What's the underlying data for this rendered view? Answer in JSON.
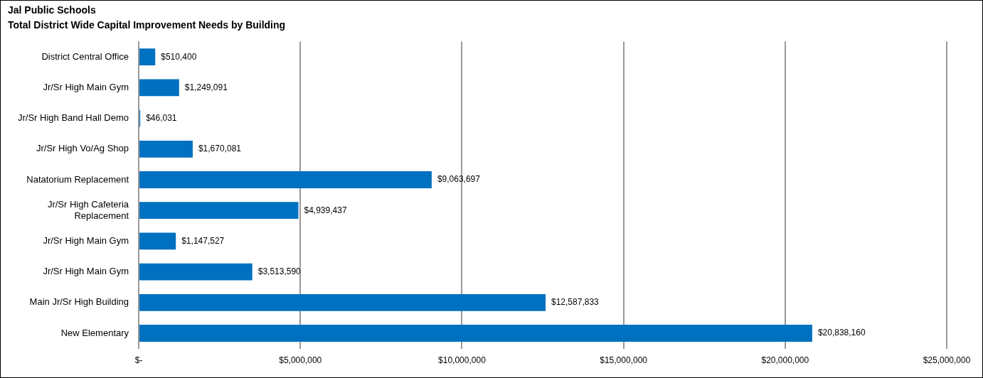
{
  "chart_data": {
    "type": "bar",
    "orientation": "horizontal",
    "title": "Jal Public Schools",
    "subtitle": "Total District Wide Capital Improvement Needs by Building",
    "categories": [
      "District Central Office",
      "Jr/Sr High Main Gym",
      "Jr/Sr High Band Hall Demo",
      "Jr/Sr High Vo/Ag Shop",
      "Natatorium Replacement",
      "Jr/Sr High Cafeteria Replacement",
      "Jr/Sr High Main Gym",
      "Jr/Sr High Main Gym",
      "Main Jr/Sr High Building",
      "New Elementary"
    ],
    "values": [
      510400,
      1249091,
      46031,
      1670081,
      9063697,
      4939437,
      1147527,
      3513590,
      12587833,
      20838160
    ],
    "value_labels": [
      "$510,400",
      "$1,249,091",
      "$46,031",
      "$1,670,081",
      "$9,063,697",
      "$4,939,437",
      "$1,147,527",
      "$3,513,590",
      "$12,587,833",
      "$20,838,160"
    ],
    "color": "#0070c0",
    "xlim": [
      0,
      25000000
    ],
    "xticks": [
      {
        "value": 0,
        "label": "$-"
      },
      {
        "value": 5000000,
        "label": "$5,000,000"
      },
      {
        "value": 10000000,
        "label": "$10,000,000"
      },
      {
        "value": 15000000,
        "label": "$15,000,000"
      },
      {
        "value": 20000000,
        "label": "$20,000,000"
      },
      {
        "value": 25000000,
        "label": "$25,000,000"
      }
    ],
    "grid": "x",
    "legend": false
  }
}
